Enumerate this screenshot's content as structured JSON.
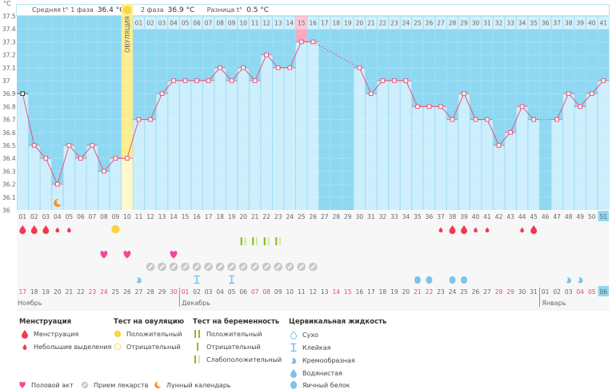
{
  "header": {
    "unit": "°C",
    "phase1_label": "Средняя t° 1 фаза",
    "phase1_value": "36.4 °C",
    "phase2_label": "2 фаза",
    "phase2_value": "36.9 °C",
    "diff_label": "Разница t°",
    "diff_value": "0.5 °C",
    "ovulation_label": "ОВУЛЯЦИЯ"
  },
  "colors": {
    "bg_dark": "#8fd8f2",
    "bar": "#cdeefc",
    "line": "#e8567a",
    "ovulation": "#fbee90",
    "highlight": "#f6a9c0",
    "weekend": "#f0406e"
  },
  "chart_data": {
    "type": "line",
    "ylabel": "°C",
    "ylim": [
      36,
      37.5
    ],
    "yticks": [
      "36",
      "36.1",
      "36.2",
      "36.3",
      "36.4",
      "36.5",
      "36.6",
      "36.7",
      "36.8",
      "36.9",
      "37",
      "37.1",
      "37.2",
      "37.3",
      "37.4",
      "37.5"
    ],
    "grid": true,
    "cycle_days": [
      "01",
      "02",
      "03",
      "04",
      "05",
      "06",
      "07",
      "08",
      "09",
      "10",
      "11",
      "12",
      "13",
      "14",
      "15",
      "16",
      "17",
      "18",
      "19",
      "20",
      "21",
      "22",
      "23",
      "24",
      "25",
      "26",
      "27",
      "28",
      "29",
      "30",
      "31",
      "32",
      "33",
      "34",
      "35",
      "36",
      "37",
      "38",
      "39",
      "40",
      "41",
      "42",
      "43",
      "44",
      "45",
      "46",
      "47",
      "48",
      "49",
      "50",
      "51"
    ],
    "temperatures": [
      36.9,
      36.5,
      36.4,
      36.2,
      36.5,
      36.4,
      36.5,
      36.3,
      36.4,
      36.4,
      36.7,
      36.7,
      36.9,
      37.0,
      37.0,
      37.0,
      37.0,
      37.1,
      37.0,
      37.1,
      37.0,
      37.2,
      37.1,
      37.1,
      37.3,
      37.3,
      null,
      null,
      null,
      37.1,
      36.9,
      37.0,
      37.0,
      37.0,
      36.8,
      36.8,
      36.8,
      36.7,
      36.9,
      36.7,
      36.7,
      36.5,
      36.6,
      36.8,
      36.7,
      null,
      36.7,
      36.9,
      36.8,
      36.9,
      37.0
    ],
    "ovulation_day": 10,
    "post_ovulation_labels": [
      "01",
      "02",
      "03",
      "04",
      "05",
      "06",
      "07",
      "08",
      "09",
      "10",
      "11",
      "12",
      "13",
      "14",
      "15",
      "16",
      "17",
      "18",
      "19",
      "20",
      "21",
      "22",
      "23",
      "24",
      "25",
      "26",
      "27",
      "28",
      "29",
      "30",
      "31",
      "32",
      "33",
      "34",
      "35",
      "36",
      "37",
      "38",
      "39",
      "40",
      "41"
    ],
    "highlighted_post_day": "15",
    "current_day": "51",
    "dates": [
      "17",
      "18",
      "19",
      "20",
      "21",
      "22",
      "23",
      "24",
      "25",
      "26",
      "27",
      "28",
      "29",
      "30",
      "01",
      "02",
      "03",
      "04",
      "05",
      "06",
      "07",
      "08",
      "09",
      "10",
      "11",
      "12",
      "13",
      "14",
      "15",
      "16",
      "17",
      "18",
      "19",
      "20",
      "21",
      "22",
      "23",
      "24",
      "25",
      "26",
      "27",
      "28",
      "29",
      "30",
      "31",
      "01",
      "02",
      "03",
      "04",
      "05",
      "06"
    ],
    "weekend_days": [
      1,
      7,
      8,
      14,
      15,
      21,
      22,
      28,
      29,
      35,
      36,
      42,
      43,
      49,
      50
    ],
    "months": [
      {
        "label": "Ноябрь",
        "start_day": 1
      },
      {
        "label": "Декабрь",
        "start_day": 15
      },
      {
        "label": "Январь",
        "start_day": 46
      }
    ],
    "markers": {
      "menstruation_heavy": [
        1,
        2,
        3,
        38,
        39,
        45
      ],
      "menstruation_light": [
        4,
        5,
        37,
        40,
        41,
        44
      ],
      "ovulation_test_positive": [
        9
      ],
      "pregnancy_test_weak_positive": [
        20,
        21,
        22,
        23
      ],
      "intercourse": [
        8,
        10,
        14
      ],
      "medication": [
        12,
        13,
        14,
        15,
        16,
        17,
        18,
        19,
        20,
        21,
        22,
        23,
        24,
        25,
        26
      ],
      "cervical_creamy": [
        11,
        48,
        49
      ],
      "cervical_sticky": [
        16,
        19
      ],
      "cervical_egg_white": [
        35,
        36,
        38,
        39
      ],
      "lunar_calendar": [
        4
      ]
    }
  },
  "legend": {
    "menstruation_title": "Менструация",
    "menstruation": "Менструация",
    "spotting": "Небольшие выделения",
    "ovulation_title": "Тест на овуляцию",
    "ov_positive": "Положительный",
    "ov_negative": "Отрицательный",
    "pregnancy_title": "Тест на беременность",
    "preg_positive": "Положительный",
    "preg_negative": "Отрицательный",
    "preg_weak": "Слабоположительный",
    "cervical_title": "Цервикальная жидкость",
    "dry": "Сухо",
    "sticky": "Клейкая",
    "creamy": "Кремообразная",
    "watery": "Водянистая",
    "egg_white": "Яичный белок",
    "intercourse": "Половой акт",
    "medication": "Прием лекарств",
    "lunar": "Лунный календарь"
  }
}
